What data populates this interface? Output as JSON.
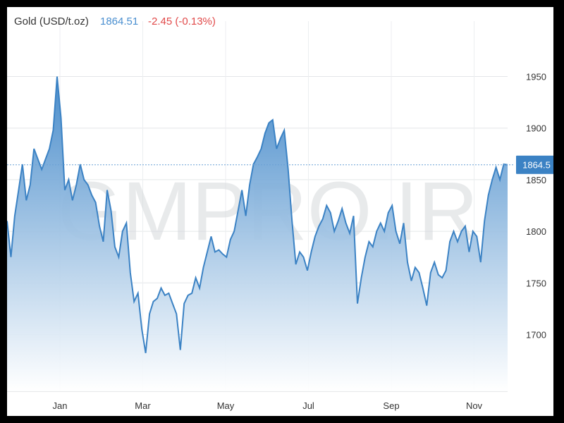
{
  "header": {
    "title": "Gold (USD/t.oz)",
    "price": "1864.51",
    "change": "-2.45 (-0.13%)"
  },
  "watermark": "GMPRO.IR",
  "colors": {
    "line": "#3b82c4",
    "area_top": "#3f86c8",
    "area_bottom": "#ffffff",
    "price_text": "#4a8fd0",
    "change_text": "#e14a4a",
    "last_label_bg": "#3b82c4"
  },
  "chart_data": {
    "type": "area",
    "title": "Gold (USD/t.oz)",
    "xlabel": "",
    "ylabel": "",
    "ylim": [
      1645,
      1990
    ],
    "yticks": [
      1700,
      1750,
      1800,
      1850,
      1900,
      1950
    ],
    "x_tick_labels": [
      "Jan",
      "Mar",
      "May",
      "Jul",
      "Sep",
      "Nov"
    ],
    "grid": true,
    "last_value_label": "1864.5",
    "series": [
      {
        "values": [
          1810,
          1775,
          1815,
          1840,
          1865,
          1830,
          1845,
          1880,
          1870,
          1860,
          1870,
          1880,
          1898,
          1950,
          1910,
          1840,
          1850,
          1830,
          1845,
          1865,
          1850,
          1845,
          1835,
          1828,
          1805,
          1790,
          1840,
          1820,
          1785,
          1775,
          1800,
          1808,
          1760,
          1732,
          1740,
          1705,
          1682,
          1720,
          1732,
          1735,
          1745,
          1738,
          1740,
          1730,
          1720,
          1685,
          1730,
          1738,
          1740,
          1755,
          1745,
          1765,
          1780,
          1795,
          1780,
          1782,
          1778,
          1775,
          1792,
          1800,
          1820,
          1840,
          1815,
          1845,
          1865,
          1872,
          1880,
          1895,
          1905,
          1908,
          1880,
          1890,
          1898,
          1860,
          1810,
          1768,
          1780,
          1775,
          1762,
          1780,
          1795,
          1805,
          1812,
          1825,
          1818,
          1800,
          1810,
          1822,
          1808,
          1798,
          1815,
          1730,
          1755,
          1775,
          1790,
          1785,
          1800,
          1808,
          1800,
          1818,
          1825,
          1800,
          1788,
          1808,
          1770,
          1752,
          1765,
          1760,
          1745,
          1728,
          1760,
          1770,
          1758,
          1755,
          1762,
          1790,
          1800,
          1790,
          1800,
          1805,
          1780,
          1800,
          1795,
          1770,
          1810,
          1835,
          1850,
          1862,
          1850,
          1865,
          1864.5
        ]
      }
    ]
  }
}
